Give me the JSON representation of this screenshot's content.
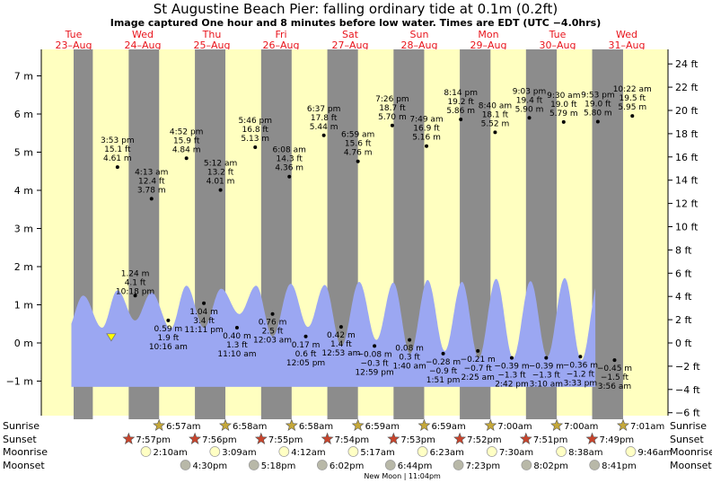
{
  "header": {
    "title": "St Augustine Beach Pier: falling  ordinary tide at 0.1m (0.2ft)",
    "subtitle": "Image captured One hour and 8 minutes before low water. Times are EDT (UTC −4.0hrs)"
  },
  "days": [
    {
      "dow": "Tue",
      "date": "23–Aug"
    },
    {
      "dow": "Wed",
      "date": "24–Aug"
    },
    {
      "dow": "Thu",
      "date": "25–Aug"
    },
    {
      "dow": "Fri",
      "date": "26–Aug"
    },
    {
      "dow": "Sat",
      "date": "27–Aug"
    },
    {
      "dow": "Sun",
      "date": "28–Aug"
    },
    {
      "dow": "Mon",
      "date": "29–Aug"
    },
    {
      "dow": "Tue",
      "date": "30–Aug"
    },
    {
      "dow": "Wed",
      "date": "31–Aug"
    }
  ],
  "chart_data": {
    "type": "area",
    "x_unit": "hours since 00:00 EDT, Tue 23-Aug",
    "y_unit_left": "m",
    "y_unit_right": "ft",
    "left_ticks": [
      "7 m",
      "6 m",
      "5 m",
      "4 m",
      "3 m",
      "2 m",
      "1 m",
      "0 m",
      "−1 m"
    ],
    "right_ticks": [
      "24 ft",
      "22 ft",
      "20 ft",
      "18 ft",
      "16 ft",
      "14 ft",
      "12 ft",
      "10 ft",
      "8 ft",
      "6 ft",
      "4 ft",
      "2 ft",
      "0 ft",
      "−2 ft",
      "−4 ft",
      "−6 ft"
    ],
    "night_intervals": [
      [
        0,
        6.95
      ],
      [
        19.95,
        30.97
      ],
      [
        43.93,
        54.97
      ],
      [
        67.92,
        78.97
      ],
      [
        91.9,
        102.98
      ],
      [
        115.88,
        126.98
      ],
      [
        139.87,
        151.0
      ],
      [
        163.85,
        175.0
      ],
      [
        187.82,
        199.02
      ]
    ],
    "current": {
      "time": 12.98,
      "height": 0.1,
      "label": "falling  ordinary tide at 0.1m (0.2ft)"
    },
    "tide_series": [
      {
        "t": 3.48,
        "h": 1.24,
        "high": true
      },
      {
        "t": 10.3,
        "h": 0.4,
        "high": false
      },
      {
        "t": 15.88,
        "h": 1.38,
        "high": true
      },
      {
        "t": 22.27,
        "h": 0.59,
        "high": false
      },
      {
        "t": 28.22,
        "h": 1.32,
        "high": true
      },
      {
        "t": 35.18,
        "h": 0.38,
        "high": false
      },
      {
        "t": 40.87,
        "h": 1.5,
        "high": true
      },
      {
        "t": 47.18,
        "h": 0.4,
        "high": false
      },
      {
        "t": 53.45,
        "h": 1.42,
        "high": true
      },
      {
        "t": 60.05,
        "h": 0.76,
        "high": false
      },
      {
        "t": 66.13,
        "h": 1.5,
        "high": true
      },
      {
        "t": 72.08,
        "h": 0.17,
        "high": false
      },
      {
        "t": 78.62,
        "h": 1.55,
        "high": true
      },
      {
        "t": 84.88,
        "h": 0.42,
        "high": false
      },
      {
        "t": 90.98,
        "h": 1.52,
        "high": true
      },
      {
        "t": 96.98,
        "h": -0.08,
        "high": false
      },
      {
        "t": 103.43,
        "h": 1.6,
        "high": true
      },
      {
        "t": 109.67,
        "h": 0.08,
        "high": false
      },
      {
        "t": 115.82,
        "h": 1.58,
        "high": true
      },
      {
        "t": 121.85,
        "h": -0.28,
        "high": false
      },
      {
        "t": 128.23,
        "h": 1.65,
        "high": true
      },
      {
        "t": 134.42,
        "h": -0.21,
        "high": false
      },
      {
        "t": 140.67,
        "h": 1.6,
        "high": true
      },
      {
        "t": 146.7,
        "h": -0.39,
        "high": false
      },
      {
        "t": 153.05,
        "h": 1.68,
        "high": true
      },
      {
        "t": 159.17,
        "h": -0.39,
        "high": false
      },
      {
        "t": 165.5,
        "h": 1.62,
        "high": true
      },
      {
        "t": 171.55,
        "h": -0.36,
        "high": false
      },
      {
        "t": 177.88,
        "h": 1.7,
        "high": true
      },
      {
        "t": 183.93,
        "h": -0.45,
        "high": false
      },
      {
        "t": 190.37,
        "h": 1.68,
        "high": true
      }
    ],
    "peak_labels": [
      {
        "t": 15.88,
        "h": 4.61,
        "time": "3:53 pm",
        "ft": "15.1 ft",
        "m": "4.61 m",
        "below": false
      },
      {
        "t": 28.22,
        "h": 3.78,
        "time": "4:13 am",
        "ft": "12.4 ft",
        "m": "3.78 m",
        "below": false
      },
      {
        "t": 40.87,
        "h": 4.84,
        "time": "4:52 pm",
        "ft": "15.9 ft",
        "m": "4.84 m",
        "below": false
      },
      {
        "t": 53.2,
        "h": 4.01,
        "time": "5:12 am",
        "ft": "13.2 ft",
        "m": "4.01 m",
        "below": false
      },
      {
        "t": 65.77,
        "h": 5.13,
        "time": "5:46 pm",
        "ft": "16.8 ft",
        "m": "5.13 m",
        "below": false
      },
      {
        "t": 78.13,
        "h": 4.36,
        "time": "6:08 am",
        "ft": "14.3 ft",
        "m": "4.36 m",
        "below": false
      },
      {
        "t": 90.62,
        "h": 5.44,
        "time": "6:37 pm",
        "ft": "17.8 ft",
        "m": "5.44 m",
        "below": false
      },
      {
        "t": 102.98,
        "h": 4.76,
        "time": "6:59 am",
        "ft": "15.6 ft",
        "m": "4.76 m",
        "below": false
      },
      {
        "t": 115.43,
        "h": 5.7,
        "time": "7:26 pm",
        "ft": "18.7 ft",
        "m": "5.70 m",
        "below": false
      },
      {
        "t": 127.82,
        "h": 5.16,
        "time": "7:49 am",
        "ft": "16.9 ft",
        "m": "5.16 m",
        "below": false
      },
      {
        "t": 140.23,
        "h": 5.86,
        "time": "8:14 pm",
        "ft": "19.2 ft",
        "m": "5.86 m",
        "below": false
      },
      {
        "t": 152.67,
        "h": 5.52,
        "time": "8:40 am",
        "ft": "18.1 ft",
        "m": "5.52 m",
        "below": false
      },
      {
        "t": 165.05,
        "h": 5.9,
        "time": "9:03 pm",
        "ft": "19.4 ft",
        "m": "5.90 m",
        "below": false
      },
      {
        "t": 177.5,
        "h": 5.79,
        "time": "9:30 am",
        "ft": "19.0 ft",
        "m": "5.79 m",
        "below": false
      },
      {
        "t": 189.88,
        "h": 5.8,
        "time": "9:53 pm",
        "ft": "19.0 ft",
        "m": "5.80 m",
        "below": false
      },
      {
        "t": 202.37,
        "h": 5.95,
        "time": "10:22 am",
        "ft": "19.5 ft",
        "m": "5.95 m",
        "below": false
      },
      {
        "t": 22.3,
        "h": 1.24,
        "time": "10:18 pm",
        "ft": "4.1 ft",
        "m": "1.24 m",
        "below": true,
        "order": "m-ft-time"
      },
      {
        "t": 34.27,
        "h": 0.59,
        "time": "10:16 am",
        "ft": "1.9 ft",
        "m": "0.59 m",
        "below": true
      },
      {
        "t": 47.18,
        "h": 1.04,
        "time": "11:11 pm",
        "ft": "3.4 ft",
        "m": "1.04 m",
        "below": true
      },
      {
        "t": 59.17,
        "h": 0.4,
        "time": "11:10 am",
        "ft": "1.3 ft",
        "m": "0.40 m",
        "below": true
      },
      {
        "t": 72.05,
        "h": 0.76,
        "time": "12:03 am",
        "ft": "2.5 ft",
        "m": "0.76 m",
        "below": true
      },
      {
        "t": 84.08,
        "h": 0.17,
        "time": "12:05 pm",
        "ft": "0.6 ft",
        "m": "0.17 m",
        "below": true
      },
      {
        "t": 96.88,
        "h": 0.42,
        "time": "12:53 am",
        "ft": "1.4 ft",
        "m": "0.42 m",
        "below": true
      },
      {
        "t": 108.98,
        "h": -0.08,
        "time": "12:59 pm",
        "ft": "−0.3 ft",
        "m": "−0.08 m",
        "below": true
      },
      {
        "t": 121.67,
        "h": 0.08,
        "time": "1:40 am",
        "ft": "0.3 ft",
        "m": "0.08 m",
        "below": true
      },
      {
        "t": 133.85,
        "h": -0.28,
        "time": "1:51 pm",
        "ft": "−0.9 ft",
        "m": "−0.28 m",
        "below": true
      },
      {
        "t": 146.42,
        "h": -0.21,
        "time": "2:25 am",
        "ft": "−0.7 ft",
        "m": "−0.21 m",
        "below": true
      },
      {
        "t": 158.7,
        "h": -0.39,
        "time": "2:42 pm",
        "ft": "−1.3 ft",
        "m": "−0.39 m",
        "below": true
      },
      {
        "t": 171.17,
        "h": -0.39,
        "time": "3:10 am",
        "ft": "−1.3 ft",
        "m": "−0.39 m",
        "below": true
      },
      {
        "t": 183.55,
        "h": -0.36,
        "time": "3:33 pm",
        "ft": "−1.2 ft",
        "m": "−0.36 m",
        "below": true
      },
      {
        "t": 195.93,
        "h": -0.45,
        "time": "3:56 am",
        "ft": "−1.5 ft",
        "m": "−0.45 m",
        "below": true
      }
    ],
    "events": {
      "labels": {
        "sunrise": "Sunrise",
        "sunset": "Sunset",
        "moonrise": "Moonrise",
        "moonset": "Moonset"
      },
      "sunrise": [
        {
          "t": 30.95,
          "text": "6:57am"
        },
        {
          "t": 54.97,
          "text": "6:58am"
        },
        {
          "t": 78.97,
          "text": "6:58am"
        },
        {
          "t": 102.98,
          "text": "6:59am"
        },
        {
          "t": 126.98,
          "text": "6:59am"
        },
        {
          "t": 151.0,
          "text": "7:00am"
        },
        {
          "t": 175.0,
          "text": "7:00am"
        },
        {
          "t": 199.02,
          "text": "7:01am"
        }
      ],
      "sunset": [
        {
          "t": 19.95,
          "text": "7:57pm"
        },
        {
          "t": 43.93,
          "text": "7:56pm"
        },
        {
          "t": 67.92,
          "text": "7:55pm"
        },
        {
          "t": 91.9,
          "text": "7:54pm"
        },
        {
          "t": 115.88,
          "text": "7:53pm"
        },
        {
          "t": 139.87,
          "text": "7:52pm"
        },
        {
          "t": 163.85,
          "text": "7:51pm"
        },
        {
          "t": 187.82,
          "text": "7:49pm"
        }
      ],
      "moonrise": [
        {
          "t": 26.17,
          "text": "2:10am"
        },
        {
          "t": 51.15,
          "text": "3:09am"
        },
        {
          "t": 76.2,
          "text": "4:12am"
        },
        {
          "t": 101.28,
          "text": "5:17am"
        },
        {
          "t": 126.38,
          "text": "6:23am"
        },
        {
          "t": 151.5,
          "text": "7:30am"
        },
        {
          "t": 176.63,
          "text": "8:38am"
        },
        {
          "t": 201.77,
          "text": "9:46am"
        }
      ],
      "moonset": [
        {
          "t": 40.5,
          "text": "4:30pm"
        },
        {
          "t": 65.3,
          "text": "5:18pm"
        },
        {
          "t": 90.03,
          "text": "6:02pm"
        },
        {
          "t": 114.73,
          "text": "6:44pm"
        },
        {
          "t": 139.38,
          "text": "7:23pm"
        },
        {
          "t": 164.03,
          "text": "8:02pm"
        },
        {
          "t": 188.68,
          "text": "8:41pm"
        }
      ],
      "new_moon": {
        "t": 119.07,
        "text": "New Moon | 11:04pm"
      }
    },
    "colors": {
      "day_bg": "#ffffc0",
      "night_bg": "#8c8c8c",
      "water": "#9ba7f2",
      "day_label": "#e8141c",
      "sun_star": "#c5a83a",
      "sunset_star": "#c8442c",
      "moonrise": "#ffffc4",
      "moonset": "#b8b8a8",
      "marker": "#ffff00"
    }
  }
}
